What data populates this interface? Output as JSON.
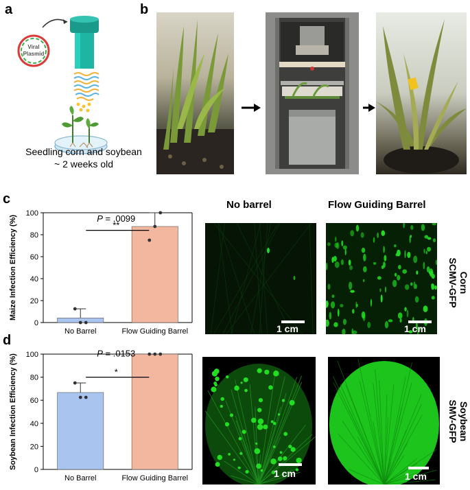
{
  "panels": {
    "a": {
      "letter": "a",
      "plasmid_label": "Viral\nPlasmid",
      "plasmid_line1": "Viral",
      "plasmid_line2": "Plasmid",
      "caption_line1": "Seedling corn and soybean",
      "caption_line2": "~ 2 weeks old"
    },
    "b": {
      "letter": "b"
    },
    "c": {
      "letter": "c",
      "row_label_line1": "Corn",
      "row_label_line2": "SCMV-GFP",
      "scale_label": "1 cm"
    },
    "d": {
      "letter": "d",
      "row_label_line1": "Soybean",
      "row_label_line2": "SMV-GFP",
      "scale_label": "1 cm"
    }
  },
  "column_headers": {
    "no_barrel": "No barrel",
    "flow_guiding": "Flow Guiding Barrel"
  },
  "colors": {
    "no_barrel_bar": "#a9c4ef",
    "flow_barrel_bar": "#f2b79e",
    "gfp_green": "#22dd22"
  },
  "chart_data": [
    {
      "type": "bar",
      "categories": [
        "No Barrel",
        "Flow Guiding Barrel"
      ],
      "values": [
        4.2,
        87.5
      ],
      "error_upper": [
        12.5,
        100
      ],
      "points": [
        [
          12.5,
          0,
          0
        ],
        [
          75,
          87.5,
          100
        ]
      ],
      "ylabel": "Maize Infection Efficiency (%)",
      "yticks": [
        "0",
        "20",
        "40",
        "60",
        "80",
        "100"
      ],
      "ylim": [
        0,
        100
      ],
      "p_label": "P",
      "p_value": " = .0099",
      "significance": "**"
    },
    {
      "type": "bar",
      "categories": [
        "No Barrel",
        "Flow Guiding Barrel"
      ],
      "values": [
        66.7,
        100
      ],
      "error_upper": [
        75,
        100
      ],
      "points": [
        [
          75,
          62.5,
          62.5
        ],
        [
          100,
          100,
          100
        ]
      ],
      "ylabel": "Soybean Infection Efficiency (%)",
      "yticks": [
        "0",
        "20",
        "40",
        "60",
        "80",
        "100"
      ],
      "ylim": [
        0,
        100
      ],
      "p_label": "P",
      "p_value": " = .0153",
      "significance": "*"
    }
  ]
}
